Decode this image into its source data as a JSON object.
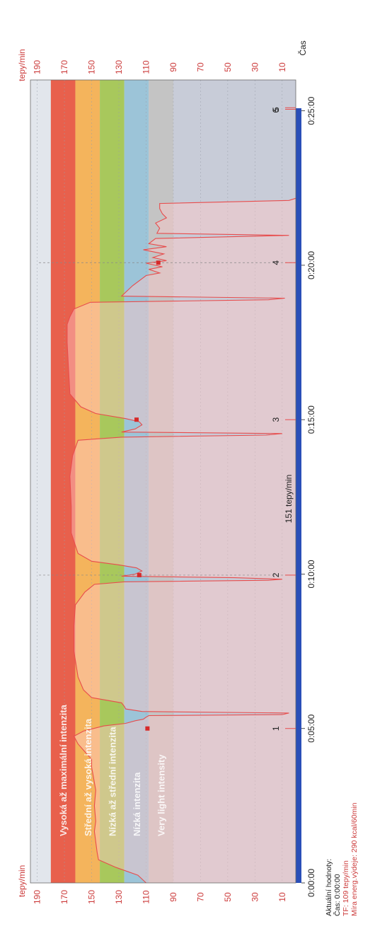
{
  "chart_data": {
    "type": "area",
    "title": "",
    "ylabel": "tepy/min",
    "xlabel": "Čas",
    "ylim": [
      0,
      195
    ],
    "xlim_seconds": [
      0,
      1560
    ],
    "y_ticks": [
      10,
      30,
      50,
      70,
      90,
      110,
      130,
      150,
      170,
      190
    ],
    "x_ticks": [
      {
        "label": "0:00:00",
        "t": 0
      },
      {
        "label": "0:05:00",
        "t": 300
      },
      {
        "label": "0:10:00",
        "t": 600
      },
      {
        "label": "0:15:00",
        "t": 900
      },
      {
        "label": "0:20:00",
        "t": 1200
      },
      {
        "label": "0:25:00",
        "t": 1500
      }
    ],
    "zones": [
      {
        "name": "Vysoká až maximální intenzita",
        "from": 162,
        "to": 180,
        "color": "#e8604c"
      },
      {
        "name": "Střední až vysoká intenzita",
        "from": 144,
        "to": 162,
        "color": "#f4b45c"
      },
      {
        "name": "Nízká až střední intenzita",
        "from": 126,
        "to": 144,
        "color": "#a8c85c"
      },
      {
        "name": "Nízká intenzita",
        "from": 108,
        "to": 126,
        "color": "#9cc4d8"
      },
      {
        "name": "Very light intensity",
        "from": 90,
        "to": 108,
        "color": "#c4c4c4"
      }
    ],
    "series": [
      {
        "points": [
          [
            0,
            110
          ],
          [
            15,
            116
          ],
          [
            30,
            132
          ],
          [
            45,
            145
          ],
          [
            60,
            146
          ],
          [
            80,
            147
          ],
          [
            100,
            148
          ],
          [
            120,
            147
          ],
          [
            150,
            148
          ],
          [
            180,
            147
          ],
          [
            210,
            149
          ],
          [
            225,
            150
          ],
          [
            240,
            150
          ],
          [
            255,
            155
          ],
          [
            270,
            160
          ],
          [
            285,
            163
          ],
          [
            295,
            156
          ],
          [
            305,
            141
          ],
          [
            310,
            125
          ],
          [
            315,
            118
          ],
          [
            318,
            112
          ],
          [
            322,
            110
          ],
          [
            325,
            108
          ],
          [
            327,
            10
          ],
          [
            330,
            5
          ],
          [
            333,
            113
          ],
          [
            338,
            125
          ],
          [
            343,
            126
          ],
          [
            350,
            128
          ],
          [
            360,
            150
          ],
          [
            375,
            156
          ],
          [
            400,
            160
          ],
          [
            450,
            163
          ],
          [
            500,
            163
          ],
          [
            540,
            162
          ],
          [
            565,
            155
          ],
          [
            580,
            148
          ],
          [
            585,
            126
          ],
          [
            588,
            20
          ],
          [
            590,
            10
          ],
          [
            593,
            45
          ],
          [
            596,
            128
          ],
          [
            600,
            118
          ],
          [
            606,
            113
          ],
          [
            612,
            117
          ],
          [
            618,
            130
          ],
          [
            625,
            150
          ],
          [
            640,
            160
          ],
          [
            680,
            165
          ],
          [
            730,
            165
          ],
          [
            790,
            166
          ],
          [
            830,
            164
          ],
          [
            860,
            160
          ],
          [
            866,
            128
          ],
          [
            870,
            22
          ],
          [
            873,
            10
          ],
          [
            876,
            128
          ],
          [
            882,
            118
          ],
          [
            890,
            113
          ],
          [
            896,
            115
          ],
          [
            902,
            125
          ],
          [
            912,
            147
          ],
          [
            925,
            158
          ],
          [
            950,
            166
          ],
          [
            1000,
            167
          ],
          [
            1050,
            168
          ],
          [
            1085,
            168
          ],
          [
            1100,
            166
          ],
          [
            1115,
            163
          ],
          [
            1128,
            151
          ],
          [
            1133,
            20
          ],
          [
            1136,
            8
          ],
          [
            1140,
            128
          ],
          [
            1160,
            120
          ],
          [
            1180,
            110
          ],
          [
            1185,
            100
          ],
          [
            1192,
            108
          ],
          [
            1197,
            98
          ],
          [
            1204,
            110
          ],
          [
            1209,
            95
          ],
          [
            1215,
            105
          ],
          [
            1222,
            97
          ],
          [
            1230,
            112
          ],
          [
            1236,
            95
          ],
          [
            1242,
            108
          ],
          [
            1252,
            103
          ],
          [
            1258,
            5
          ],
          [
            1262,
            102
          ],
          [
            1272,
            100
          ],
          [
            1282,
            103
          ],
          [
            1292,
            95
          ],
          [
            1300,
            98
          ],
          [
            1310,
            100
          ],
          [
            1320,
            100
          ],
          [
            1326,
            5
          ],
          [
            1330,
            0
          ]
        ]
      }
    ],
    "laps": [
      {
        "label": "1",
        "t": 300,
        "hr": 109
      },
      {
        "label": "2",
        "t": 598,
        "hr": 115
      },
      {
        "label": "3",
        "t": 900,
        "hr": 117
      },
      {
        "label": "4",
        "t": 1205,
        "hr": 101
      },
      {
        "label": "5",
        "t": 1503,
        "hr": 0
      },
      {
        "label": "6",
        "t": 1506,
        "hr": 0
      }
    ],
    "annotation": "151 tepy/min",
    "guide_times": [
      598,
      1205
    ]
  },
  "current_values": {
    "heading": "Aktuální hodnoty:",
    "time": "Čas: 0:00:00",
    "hr": "TF: 109 tepy/min",
    "energy": "Míra energ.výdeje: 290 kcal/60min"
  },
  "colors": {
    "accent": "#cc3b3b",
    "line": "#e84c4c",
    "area_fill": "rgba(255,200,200,0.45)",
    "axis_bar": "#2a4fb8",
    "background_zone": "#c8ccd8",
    "top_zone": "#e2e6ec"
  }
}
